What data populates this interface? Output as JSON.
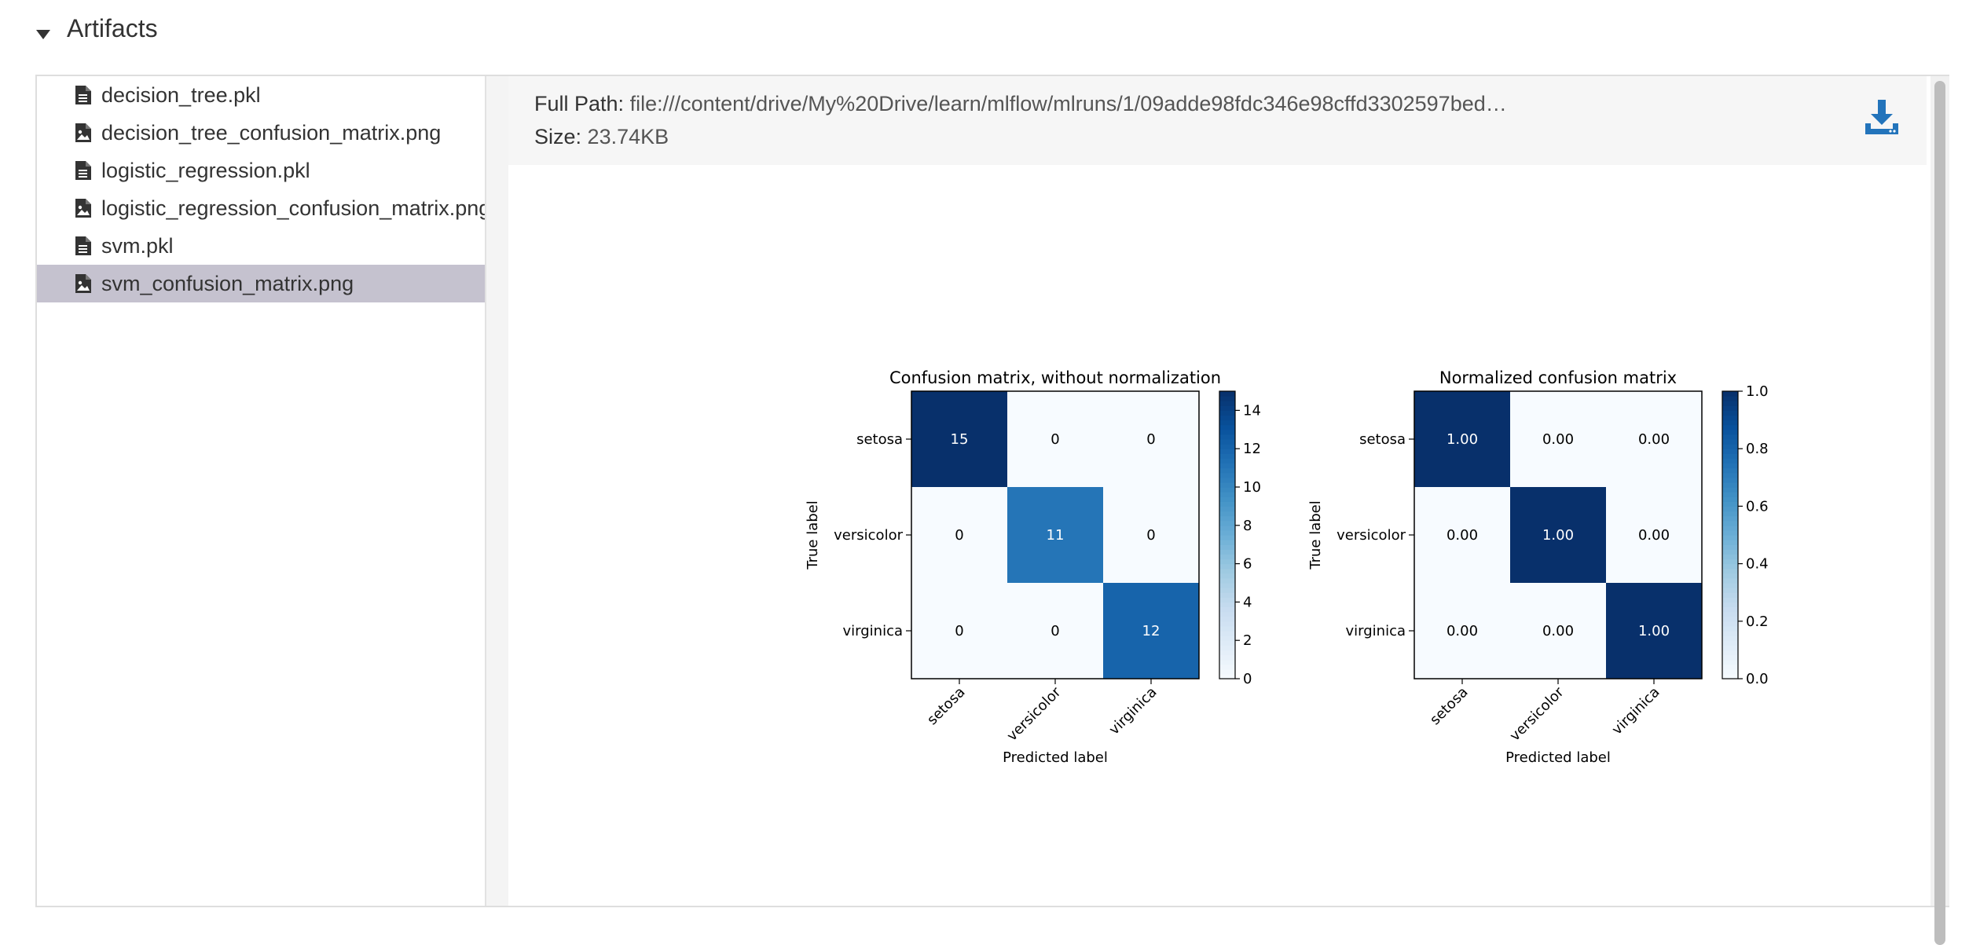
{
  "section": {
    "title": "Artifacts",
    "expanded": true
  },
  "files": [
    {
      "name": "decision_tree.pkl",
      "icon": "file-icon",
      "selected": false
    },
    {
      "name": "decision_tree_confusion_matrix.png",
      "icon": "image-file-icon",
      "selected": false
    },
    {
      "name": "logistic_regression.pkl",
      "icon": "file-icon",
      "selected": false
    },
    {
      "name": "logistic_regression_confusion_matrix.png",
      "icon": "image-file-icon",
      "selected": false
    },
    {
      "name": "svm.pkl",
      "icon": "file-icon",
      "selected": false
    },
    {
      "name": "svm_confusion_matrix.png",
      "icon": "image-file-icon",
      "selected": true
    }
  ],
  "preview": {
    "full_path_label": "Full Path:",
    "full_path": "file:///content/drive/My%20Drive/learn/mlflow/mlruns/1/09adde98fdc346e98cffd3302597bed…",
    "size_label": "Size:",
    "size": "23.74KB",
    "download_icon": "download-icon",
    "accent_color": "#2374bb"
  },
  "chart_data": [
    {
      "type": "heatmap",
      "title": "Confusion matrix, without normalization",
      "xlabel": "Predicted label",
      "ylabel": "True label",
      "x_categories": [
        "setosa",
        "versicolor",
        "virginica"
      ],
      "y_categories": [
        "setosa",
        "versicolor",
        "virginica"
      ],
      "values": [
        [
          15,
          0,
          0
        ],
        [
          0,
          11,
          0
        ],
        [
          0,
          0,
          12
        ]
      ],
      "cell_labels": [
        [
          "15",
          "0",
          "0"
        ],
        [
          "0",
          "11",
          "0"
        ],
        [
          "0",
          "0",
          "12"
        ]
      ],
      "colorbar": {
        "min": 0,
        "max": 15,
        "ticks": [
          "0",
          "2",
          "4",
          "6",
          "8",
          "10",
          "12",
          "14"
        ],
        "tick_values": [
          0,
          2,
          4,
          6,
          8,
          10,
          12,
          14
        ]
      },
      "colormap": "Blues"
    },
    {
      "type": "heatmap",
      "title": "Normalized confusion matrix",
      "xlabel": "Predicted label",
      "ylabel": "True label",
      "x_categories": [
        "setosa",
        "versicolor",
        "virginica"
      ],
      "y_categories": [
        "setosa",
        "versicolor",
        "virginica"
      ],
      "values": [
        [
          1.0,
          0.0,
          0.0
        ],
        [
          0.0,
          1.0,
          0.0
        ],
        [
          0.0,
          0.0,
          1.0
        ]
      ],
      "cell_labels": [
        [
          "1.00",
          "0.00",
          "0.00"
        ],
        [
          "0.00",
          "1.00",
          "0.00"
        ],
        [
          "0.00",
          "0.00",
          "1.00"
        ]
      ],
      "colorbar": {
        "min": 0,
        "max": 1,
        "ticks": [
          "0.0",
          "0.2",
          "0.4",
          "0.6",
          "0.8",
          "1.0"
        ],
        "tick_values": [
          0,
          0.2,
          0.4,
          0.6,
          0.8,
          1.0
        ]
      },
      "colormap": "Blues"
    }
  ]
}
